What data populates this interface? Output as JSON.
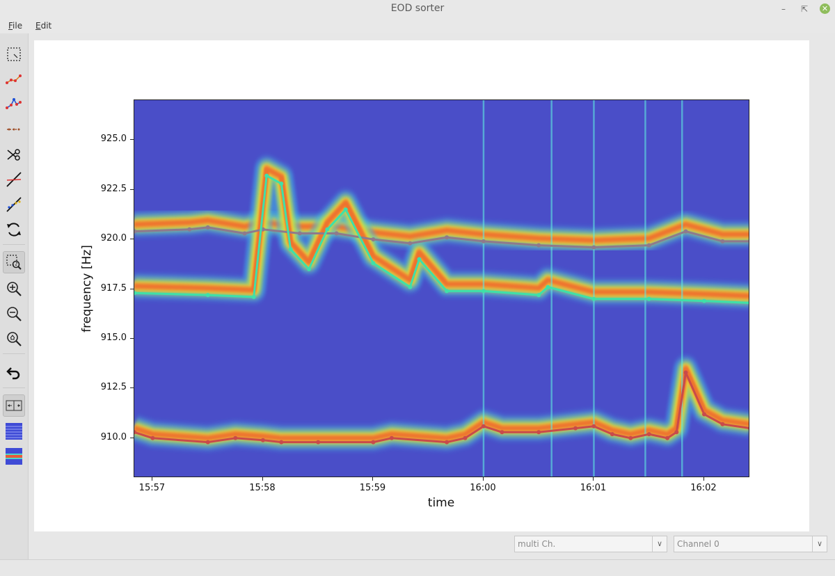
{
  "window": {
    "title": "EOD sorter"
  },
  "menu": {
    "file": "File",
    "file_rest": "ile",
    "edit": "Edit",
    "edit_rest": "dit",
    "file_first": "F",
    "edit_first": "E"
  },
  "toolbar": {
    "tools": [
      "select-box",
      "connect-points",
      "connect-line",
      "dotted-line",
      "cut",
      "delete-line",
      "split-line",
      "refresh",
      "zoom-select",
      "zoom-in",
      "zoom-out",
      "zoom-home",
      "undo",
      "channel-layout",
      "spectrogram-blue",
      "spectrogram-red"
    ]
  },
  "controls": {
    "channel_mode": "multi Ch.",
    "channel": "Channel 0"
  },
  "chart_data": {
    "type": "line",
    "xlabel": "time",
    "ylabel": "frequency [Hz]",
    "xticks": [
      "15:57",
      "15:58",
      "15:59",
      "16:00",
      "16:01",
      "16:02"
    ],
    "yticks": [
      "925.0",
      "922.5",
      "920.0",
      "917.5",
      "915.0",
      "912.5",
      "910.0"
    ],
    "ylim": [
      908.0,
      927.0
    ],
    "xlim": [
      "15:56:50",
      "16:02:25"
    ],
    "background": "spectrogram (jet colormap)",
    "series": [
      {
        "color": "#8f7a8c",
        "x": [
          "15:56:50",
          "15:57:20",
          "15:57:30",
          "15:57:50",
          "15:58:00",
          "15:58:20",
          "15:58:40",
          "15:59:00",
          "15:59:20",
          "15:59:40",
          "16:00:00",
          "16:00:30",
          "16:01:00",
          "16:01:30",
          "16:01:50",
          "16:02:10",
          "16:02:25"
        ],
        "y": [
          920.4,
          920.5,
          920.6,
          920.3,
          920.5,
          920.3,
          920.3,
          920.0,
          919.8,
          920.1,
          919.9,
          919.7,
          919.6,
          919.7,
          920.4,
          919.9,
          919.9
        ]
      },
      {
        "color": "#3fe0a8",
        "x": [
          "15:56:50",
          "15:57:30",
          "15:57:55",
          "15:58:02",
          "15:58:10",
          "15:58:15",
          "15:58:25",
          "15:58:35",
          "15:58:45",
          "15:59:00",
          "15:59:20",
          "15:59:25",
          "15:59:40",
          "16:00:00",
          "16:00:30",
          "16:00:35",
          "16:01:00",
          "16:01:30",
          "16:02:00",
          "16:02:25"
        ],
        "y": [
          917.3,
          917.2,
          917.1,
          923.2,
          922.8,
          919.5,
          918.5,
          920.5,
          921.5,
          918.8,
          917.6,
          919.0,
          917.4,
          917.4,
          917.2,
          917.6,
          917.0,
          917.0,
          916.9,
          916.8
        ]
      },
      {
        "color": "#c94a4a",
        "x": [
          "15:56:50",
          "15:57:00",
          "15:57:30",
          "15:57:45",
          "15:58:00",
          "15:58:10",
          "15:58:30",
          "15:59:00",
          "15:59:10",
          "15:59:40",
          "15:59:50",
          "16:00:00",
          "16:00:10",
          "16:00:30",
          "16:00:50",
          "16:01:00",
          "16:01:10",
          "16:01:20",
          "16:01:30",
          "16:01:40",
          "16:01:45",
          "16:01:50",
          "16:02:00",
          "16:02:10",
          "16:02:25"
        ],
        "y": [
          910.3,
          910.0,
          909.8,
          910.0,
          909.9,
          909.8,
          909.8,
          909.8,
          910.0,
          909.8,
          910.0,
          910.6,
          910.3,
          910.3,
          910.5,
          910.6,
          910.2,
          910.0,
          910.2,
          910.0,
          910.3,
          913.3,
          911.2,
          910.7,
          910.5
        ]
      }
    ]
  }
}
